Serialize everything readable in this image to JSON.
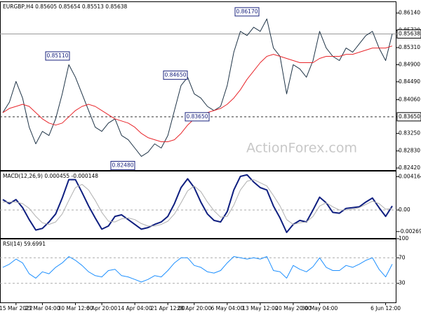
{
  "chart_data": [
    {
      "type": "line",
      "title": "EURGBP,H4  0.85605 0.85654 0.85513 0.85638",
      "ylim": [
        0.8237,
        0.8642
      ],
      "yticks": [
        {
          "value": 0.8614,
          "label": "0.86140"
        },
        {
          "value": 0.8572,
          "label": "0.85720"
        },
        {
          "value": 0.8531,
          "label": "0.85310"
        },
        {
          "value": 0.849,
          "label": "0.84900"
        },
        {
          "value": 0.8449,
          "label": "0.84490"
        },
        {
          "value": 0.8406,
          "label": "0.84060"
        },
        {
          "value": 0.8365,
          "label": "0.83650"
        },
        {
          "value": 0.8325,
          "label": "0.83250"
        },
        {
          "value": 0.8283,
          "label": "0.82830"
        },
        {
          "value": 0.8242,
          "label": "0.82420"
        }
      ],
      "dashed_levels": [
        0.8365
      ],
      "last": {
        "value": 0.85638,
        "label": "0.85638"
      },
      "watermark": "ActionForex.com",
      "annotations": [
        {
          "value": 0.8617,
          "label": "0.86170"
        },
        {
          "value": 0.8511,
          "label": "0.85110"
        },
        {
          "value": 0.8465,
          "label": "0.84650"
        },
        {
          "value": 0.8365,
          "label": "0.83650"
        },
        {
          "value": 0.8248,
          "label": "0.82480"
        }
      ],
      "series": [
        {
          "color": "#1f3447",
          "width": 1,
          "values": [
            0.8375,
            0.84,
            0.845,
            0.841,
            0.834,
            0.83,
            0.833,
            0.832,
            0.836,
            0.842,
            0.849,
            0.846,
            0.842,
            0.838,
            0.834,
            0.833,
            0.835,
            0.836,
            0.832,
            0.831,
            0.829,
            0.827,
            0.828,
            0.83,
            0.829,
            0.832,
            0.838,
            0.844,
            0.846,
            0.842,
            0.841,
            0.839,
            0.838,
            0.839,
            0.844,
            0.852,
            0.857,
            0.856,
            0.858,
            0.857,
            0.86,
            0.853,
            0.851,
            0.842,
            0.849,
            0.848,
            0.846,
            0.85,
            0.857,
            0.853,
            0.851,
            0.85,
            0.853,
            0.852,
            0.854,
            0.856,
            0.857,
            0.853,
            0.85,
            0.8564
          ]
        },
        {
          "color": "#e8262b",
          "width": 1,
          "values": [
            0.8375,
            0.8385,
            0.839,
            0.8395,
            0.839,
            0.8375,
            0.836,
            0.835,
            0.8345,
            0.835,
            0.8365,
            0.838,
            0.839,
            0.8395,
            0.839,
            0.838,
            0.837,
            0.836,
            0.8355,
            0.835,
            0.834,
            0.8325,
            0.8315,
            0.831,
            0.8305,
            0.8305,
            0.831,
            0.8325,
            0.8345,
            0.836,
            0.837,
            0.8375,
            0.838,
            0.8385,
            0.8395,
            0.841,
            0.843,
            0.8455,
            0.8475,
            0.8495,
            0.851,
            0.8515,
            0.851,
            0.8505,
            0.85,
            0.8495,
            0.8495,
            0.8495,
            0.8505,
            0.851,
            0.851,
            0.851,
            0.8515,
            0.8515,
            0.852,
            0.8525,
            0.853,
            0.853,
            0.853,
            0.8535
          ]
        }
      ]
    },
    {
      "type": "line",
      "title": "MACD(12,26,9) 0.000455 -0.000148",
      "ylim": [
        -0.0035,
        0.0049
      ],
      "yticks": [
        0.004164,
        {
          "value": 0,
          "label": "0.00"
        },
        -0.002699
      ],
      "dashed_levels": [
        0
      ],
      "series": [
        {
          "color": "#0f1f80",
          "width": 2,
          "values": [
            0.0013,
            0.0008,
            0.0013,
            0.0003,
            -0.0012,
            -0.0025,
            -0.0023,
            -0.0015,
            -0.0005,
            0.0015,
            0.0038,
            0.0038,
            0.0022,
            0.0005,
            -0.001,
            -0.0024,
            -0.002,
            -0.0008,
            -0.0006,
            -0.0012,
            -0.0018,
            -0.0024,
            -0.0022,
            -0.0018,
            -0.0015,
            -0.0008,
            0.0008,
            0.0028,
            0.0039,
            0.0028,
            0.001,
            -0.0005,
            -0.0013,
            -0.0015,
            -0.0002,
            0.0025,
            0.0042,
            0.0044,
            0.0035,
            0.0028,
            0.0025,
            0.0005,
            -0.001,
            -0.0028,
            -0.0018,
            -0.0013,
            -0.0015,
            0,
            0.0016,
            0.0009,
            -0.0003,
            -0.0004,
            0.0002,
            0.0003,
            0.0004,
            0.001,
            0.0015,
            0.0003,
            -0.0008,
            0.0005
          ]
        },
        {
          "color": "#b0b0b0",
          "width": 1,
          "values": [
            0.001,
            0.001,
            0.001,
            0.0008,
            0.0002,
            -0.0008,
            -0.0016,
            -0.0018,
            -0.0015,
            -0.0005,
            0.0012,
            0.0028,
            0.0032,
            0.0025,
            0.0012,
            -0.0003,
            -0.0014,
            -0.0015,
            -0.0011,
            -0.001,
            -0.0012,
            -0.0017,
            -0.002,
            -0.002,
            -0.0018,
            -0.0014,
            -0.0005,
            0.0009,
            0.0024,
            0.003,
            0.0023,
            0.001,
            -0.0001,
            -0.0009,
            -0.0008,
            0.0006,
            0.0025,
            0.0036,
            0.0038,
            0.0034,
            0.003,
            0.0018,
            0.0005,
            -0.0012,
            -0.0018,
            -0.0016,
            -0.0015,
            -0.0008,
            0.0005,
            0.0009,
            0.0004,
            0,
            0,
            0.0001,
            0.0003,
            0.0007,
            0.0011,
            0.0008,
            0.0001,
            0.0002
          ]
        }
      ]
    },
    {
      "type": "line",
      "title": "RSI(14) 59.6991",
      "ylim": [
        0,
        100
      ],
      "yticks": [
        100,
        70,
        30
      ],
      "dashed_levels": [
        70,
        30
      ],
      "categories": [
        null,
        null,
        "15 Mar 2022",
        null,
        null,
        null,
        "23 Mar 04:00",
        null,
        null,
        null,
        null,
        "30 Mar 12:00",
        null,
        null,
        null,
        "6 Apr 20:00",
        null,
        null,
        null,
        null,
        "14 Apr 04:00",
        null,
        null,
        null,
        null,
        "21 Apr 12:00",
        null,
        null,
        null,
        "28 Apr 20:00",
        null,
        null,
        null,
        null,
        "6 May 04:00",
        null,
        null,
        null,
        null,
        "13 May 12:00",
        null,
        null,
        null,
        null,
        "20 May 20:00",
        null,
        null,
        null,
        "30 May 04:00",
        null,
        null,
        null,
        null,
        null,
        null,
        null,
        null,
        null,
        "6 Jun 12:00",
        null
      ],
      "series": [
        {
          "color": "#1e90ff",
          "width": 1,
          "values": [
            55,
            60,
            68,
            62,
            45,
            38,
            48,
            45,
            55,
            62,
            72,
            66,
            58,
            48,
            42,
            40,
            50,
            52,
            42,
            40,
            36,
            32,
            36,
            42,
            40,
            50,
            62,
            70,
            70,
            58,
            55,
            48,
            46,
            50,
            62,
            72,
            70,
            68,
            70,
            68,
            72,
            50,
            48,
            38,
            58,
            52,
            48,
            56,
            70,
            55,
            50,
            50,
            58,
            55,
            60,
            66,
            70,
            52,
            40,
            60
          ]
        }
      ]
    }
  ]
}
